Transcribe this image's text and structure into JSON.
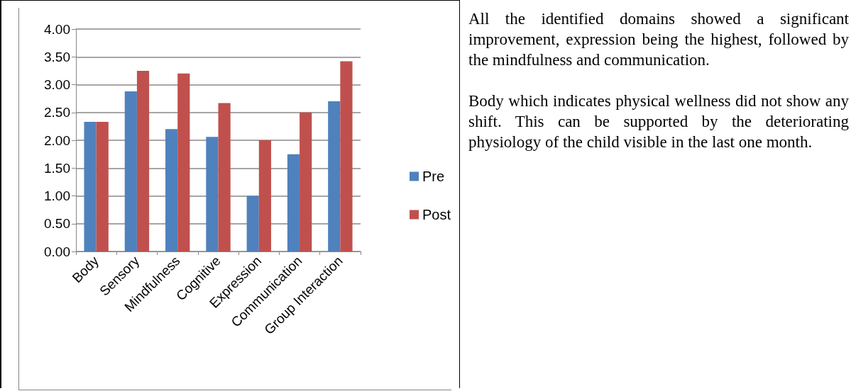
{
  "chart_data": {
    "type": "bar",
    "categories": [
      "Body",
      "Sensory",
      "Mindfulness",
      "Cognitive",
      "Expression",
      "Communication",
      "Group Interaction"
    ],
    "series": [
      {
        "name": "Pre",
        "color": "#4f81bd",
        "values": [
          2.33,
          2.88,
          2.2,
          2.06,
          1.0,
          1.75,
          2.7
        ]
      },
      {
        "name": "Post",
        "color": "#c0504d",
        "values": [
          2.33,
          3.25,
          3.2,
          2.67,
          2.0,
          2.5,
          3.42
        ]
      }
    ],
    "ylim": [
      0,
      4
    ],
    "yticks": [
      {
        "value": 0,
        "label": "0.00"
      },
      {
        "value": 0.5,
        "label": "0.50"
      },
      {
        "value": 1,
        "label": "1.00"
      },
      {
        "value": 1.5,
        "label": "1.50"
      },
      {
        "value": 2,
        "label": "2.00"
      },
      {
        "value": 2.5,
        "label": "2.50"
      },
      {
        "value": 3,
        "label": "3.00"
      },
      {
        "value": 3.5,
        "label": "3.50"
      },
      {
        "value": 4,
        "label": "4.00"
      }
    ],
    "grid": "y",
    "legend": "right",
    "annotations": [
      "All the identified domains showed a significant improvement, expression being the highest, followed by the mindfulness and communication.",
      "Body which indicates physical wellness did not show any shift. This can be supported by the deteriorating physiology of the child visible in the last one month."
    ]
  }
}
